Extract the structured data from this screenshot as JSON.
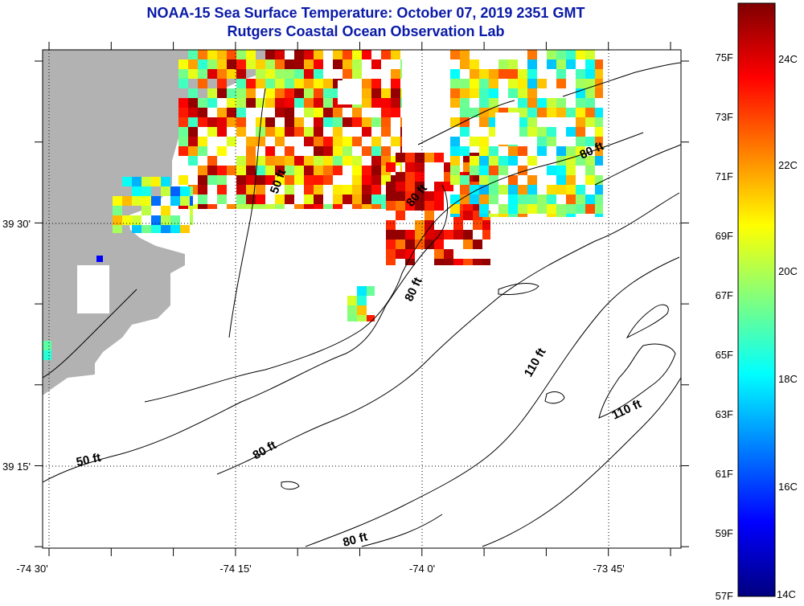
{
  "header": {
    "title": "NOAA-15 Sea Surface Temperature:  October 07, 2019 2351 GMT",
    "subtitle": "Rutgers Coastal Ocean Observation Lab"
  },
  "map": {
    "lon_labels": [
      "-74 30'",
      "-74 15'",
      "-74 0'",
      "-73 45'"
    ],
    "lat_labels": [
      "39 30'",
      "39 15'"
    ],
    "isobath_labels": [
      "50 ft",
      "80 ft",
      "80 ft",
      "80 ft",
      "50 ft",
      "80 ft",
      "110 ft",
      "110 ft",
      "80 ft"
    ]
  },
  "colorbar": {
    "f_labels": [
      "75F",
      "73F",
      "71F",
      "69F",
      "67F",
      "65F",
      "63F",
      "61F",
      "59F",
      "57F"
    ],
    "c_labels": [
      "24C",
      "22C",
      "20C",
      "18C",
      "16C",
      "14C"
    ],
    "colors": [
      "#00007f",
      "#0000ff",
      "#007fff",
      "#00ffff",
      "#7fff7f",
      "#ffff00",
      "#ff7f00",
      "#ff0000",
      "#7f0000"
    ]
  }
}
